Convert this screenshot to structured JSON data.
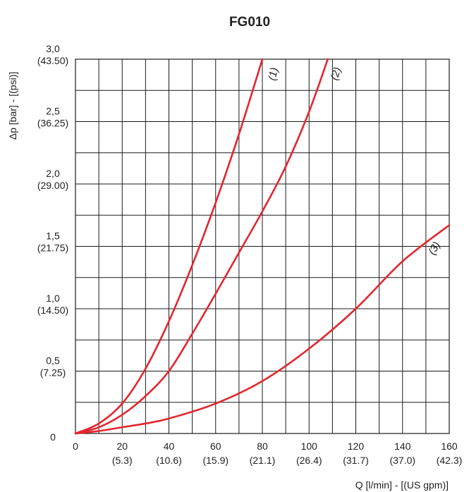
{
  "chart_data": {
    "type": "line",
    "title": "FG010",
    "xlabel": "Q [l/min] - [(US gpm)]",
    "ylabel": "Δp [bar] - [(psi)]",
    "xlim": [
      0,
      160
    ],
    "ylim": [
      0,
      3.0
    ],
    "x_ticks": [
      {
        "value": 0,
        "label": "0",
        "sub": ""
      },
      {
        "value": 20,
        "label": "20",
        "sub": "(5.3)"
      },
      {
        "value": 40,
        "label": "40",
        "sub": "(10.6)"
      },
      {
        "value": 60,
        "label": "60",
        "sub": "(15.9)"
      },
      {
        "value": 80,
        "label": "80",
        "sub": "(21.1)"
      },
      {
        "value": 100,
        "label": "100",
        "sub": "(26.4)"
      },
      {
        "value": 120,
        "label": "120",
        "sub": "(31.7)"
      },
      {
        "value": 140,
        "label": "140",
        "sub": "(37.0)"
      },
      {
        "value": 160,
        "label": "160",
        "sub": "(42.3)"
      }
    ],
    "y_ticks": [
      {
        "value": 0,
        "label": "0",
        "sub": ""
      },
      {
        "value": 0.5,
        "label": "0,5",
        "sub": "(7.25)"
      },
      {
        "value": 1.0,
        "label": "1,0",
        "sub": "(14.50)"
      },
      {
        "value": 1.5,
        "label": "1,5",
        "sub": "(21.75)"
      },
      {
        "value": 2.0,
        "label": "2,0",
        "sub": "(29.00)"
      },
      {
        "value": 2.5,
        "label": "2,5",
        "sub": "(36.25)"
      },
      {
        "value": 3.0,
        "label": "3,0",
        "sub": "(43.50)"
      }
    ],
    "grid": true,
    "grid_x_step": 10,
    "grid_y_step": 0.25,
    "color": "#e3262e",
    "series": [
      {
        "name": "(1)",
        "x": [
          0,
          10,
          20,
          30,
          40,
          50,
          60,
          70,
          80
        ],
        "y": [
          0,
          0.08,
          0.24,
          0.52,
          0.9,
          1.35,
          1.85,
          2.4,
          3.0
        ]
      },
      {
        "name": "(2)",
        "x": [
          0,
          10,
          20,
          30,
          40,
          50,
          60,
          70,
          80,
          90,
          100,
          108
        ],
        "y": [
          0,
          0.05,
          0.15,
          0.3,
          0.5,
          0.8,
          1.12,
          1.45,
          1.78,
          2.14,
          2.58,
          3.0
        ]
      },
      {
        "name": "(3)",
        "x": [
          0,
          10,
          20,
          30,
          40,
          60,
          80,
          100,
          120,
          140,
          160
        ],
        "y": [
          0,
          0.02,
          0.05,
          0.08,
          0.12,
          0.24,
          0.42,
          0.68,
          1.0,
          1.38,
          1.67
        ]
      }
    ]
  }
}
